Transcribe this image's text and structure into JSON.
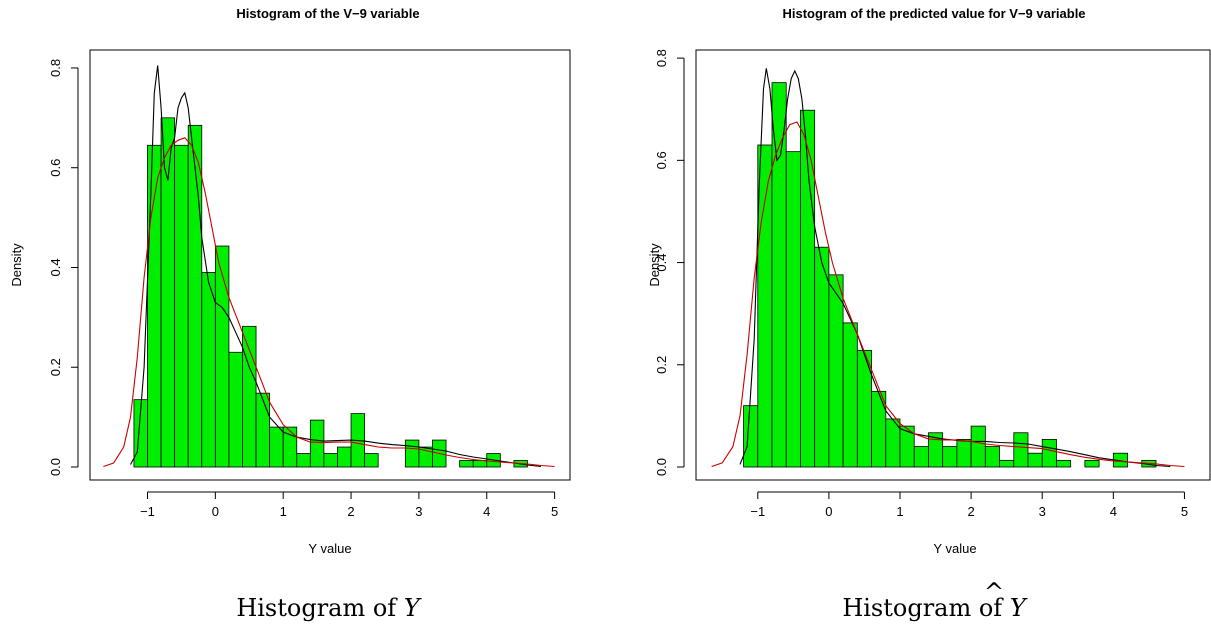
{
  "chart_data": [
    {
      "type": "bar",
      "title": "Histogram of the V−9 variable",
      "xlabel": "Y value",
      "ylabel": "Density",
      "xlim": [
        -1.7,
        5.05
      ],
      "ylim": [
        0,
        0.83
      ],
      "x_ticks": [
        -1,
        0,
        1,
        2,
        3,
        4,
        5
      ],
      "x_tick_labels": [
        "−1",
        "0",
        "1",
        "2",
        "3",
        "4",
        "5"
      ],
      "y_ticks": [
        0.0,
        0.2,
        0.4,
        0.6,
        0.8
      ],
      "y_tick_labels": [
        "0.0",
        "0.2",
        "0.4",
        "0.6",
        "0.8"
      ],
      "bin_edges": [
        -1.2,
        -1.0,
        -0.8,
        -0.6,
        -0.4,
        -0.2,
        0.0,
        0.2,
        0.4,
        0.6,
        0.8,
        1.0,
        1.2,
        1.4,
        1.6,
        1.8,
        2.0,
        2.2,
        2.4,
        2.6,
        2.8,
        3.0,
        3.2,
        3.4,
        3.6,
        3.8,
        4.0,
        4.2,
        4.4,
        4.6
      ],
      "values": [
        0.135,
        0.645,
        0.7,
        0.645,
        0.685,
        0.39,
        0.443,
        0.23,
        0.282,
        0.148,
        0.08,
        0.08,
        0.027,
        0.094,
        0.027,
        0.04,
        0.107,
        0.027,
        0.0,
        0.0,
        0.054,
        0.04,
        0.054,
        0.0,
        0.013,
        0.013,
        0.027,
        0.0,
        0.013
      ],
      "bar_color": "#00ee00",
      "series": [
        {
          "color": "#000000",
          "x": [
            -1.25,
            -1.15,
            -1.05,
            -0.95,
            -0.9,
            -0.85,
            -0.8,
            -0.75,
            -0.7,
            -0.65,
            -0.6,
            -0.55,
            -0.5,
            -0.45,
            -0.4,
            -0.35,
            -0.3,
            -0.25,
            -0.2,
            -0.1,
            0.0,
            0.1,
            0.2,
            0.3,
            0.4,
            0.5,
            0.6,
            0.8,
            1.0,
            1.2,
            1.4,
            1.6,
            1.8,
            2.0,
            2.2,
            2.4,
            2.6,
            2.8,
            3.0,
            3.2,
            3.4,
            3.6,
            3.8,
            4.0,
            4.2,
            4.4,
            4.6,
            4.8
          ],
          "y": [
            0.005,
            0.03,
            0.2,
            0.55,
            0.75,
            0.805,
            0.72,
            0.6,
            0.575,
            0.64,
            0.66,
            0.72,
            0.74,
            0.75,
            0.72,
            0.66,
            0.6,
            0.54,
            0.46,
            0.37,
            0.33,
            0.32,
            0.3,
            0.27,
            0.24,
            0.2,
            0.17,
            0.1,
            0.07,
            0.06,
            0.055,
            0.052,
            0.053,
            0.054,
            0.052,
            0.048,
            0.045,
            0.043,
            0.04,
            0.036,
            0.032,
            0.025,
            0.02,
            0.016,
            0.012,
            0.008,
            0.004,
            0.001
          ]
        },
        {
          "color": "#cc0000",
          "x": [
            -1.65,
            -1.5,
            -1.35,
            -1.25,
            -1.15,
            -1.05,
            -0.95,
            -0.85,
            -0.75,
            -0.65,
            -0.55,
            -0.45,
            -0.35,
            -0.25,
            -0.15,
            -0.05,
            0.05,
            0.2,
            0.4,
            0.6,
            0.8,
            1.0,
            1.2,
            1.4,
            1.6,
            1.8,
            2.0,
            2.2,
            2.4,
            2.6,
            2.8,
            3.0,
            3.2,
            3.4,
            3.6,
            3.8,
            4.0,
            4.2,
            4.4,
            4.6,
            4.8,
            5.0
          ],
          "y": [
            0.001,
            0.008,
            0.04,
            0.1,
            0.22,
            0.38,
            0.5,
            0.58,
            0.62,
            0.645,
            0.655,
            0.66,
            0.645,
            0.61,
            0.55,
            0.48,
            0.41,
            0.34,
            0.27,
            0.2,
            0.13,
            0.085,
            0.06,
            0.05,
            0.049,
            0.05,
            0.05,
            0.045,
            0.04,
            0.038,
            0.038,
            0.036,
            0.03,
            0.024,
            0.019,
            0.015,
            0.012,
            0.01,
            0.008,
            0.006,
            0.003,
            0.001
          ]
        }
      ],
      "caption": "Histogram of ",
      "caption_var": "Y"
    },
    {
      "type": "bar",
      "title": "Histogram of the predicted value for V−9 variable",
      "xlabel": "Y value",
      "ylabel": "Density",
      "xlim": [
        -1.7,
        5.05
      ],
      "ylim": [
        0,
        0.81
      ],
      "x_ticks": [
        -1,
        0,
        1,
        2,
        3,
        4,
        5
      ],
      "x_tick_labels": [
        "−1",
        "0",
        "1",
        "2",
        "3",
        "4",
        "5"
      ],
      "y_ticks": [
        0.0,
        0.2,
        0.4,
        0.6,
        0.8
      ],
      "y_tick_labels": [
        "0.0",
        "0.2",
        "0.4",
        "0.6",
        "0.8"
      ],
      "bin_edges": [
        -1.2,
        -1.0,
        -0.8,
        -0.6,
        -0.4,
        -0.2,
        0.0,
        0.2,
        0.4,
        0.6,
        0.8,
        1.0,
        1.2,
        1.4,
        1.6,
        1.8,
        2.0,
        2.2,
        2.4,
        2.6,
        2.8,
        3.0,
        3.2,
        3.4,
        3.6,
        3.8,
        4.0,
        4.2,
        4.4,
        4.6
      ],
      "values": [
        0.12,
        0.63,
        0.752,
        0.617,
        0.698,
        0.43,
        0.376,
        0.282,
        0.228,
        0.148,
        0.094,
        0.08,
        0.04,
        0.067,
        0.04,
        0.054,
        0.08,
        0.04,
        0.013,
        0.067,
        0.027,
        0.054,
        0.013,
        0.0,
        0.013,
        0.0,
        0.027,
        0.0,
        0.013
      ],
      "bar_color": "#00ee00",
      "series": [
        {
          "color": "#000000",
          "x": [
            -1.25,
            -1.15,
            -1.05,
            -0.98,
            -0.92,
            -0.88,
            -0.83,
            -0.78,
            -0.73,
            -0.68,
            -0.63,
            -0.58,
            -0.53,
            -0.48,
            -0.43,
            -0.38,
            -0.33,
            -0.28,
            -0.2,
            -0.1,
            0.0,
            0.1,
            0.2,
            0.3,
            0.4,
            0.5,
            0.6,
            0.8,
            1.0,
            1.2,
            1.4,
            1.6,
            1.8,
            2.0,
            2.2,
            2.4,
            2.6,
            2.8,
            3.0,
            3.2,
            3.4,
            3.6,
            3.8,
            4.0,
            4.2,
            4.4,
            4.6,
            4.8
          ],
          "y": [
            0.005,
            0.04,
            0.25,
            0.55,
            0.74,
            0.78,
            0.74,
            0.66,
            0.6,
            0.61,
            0.66,
            0.72,
            0.76,
            0.775,
            0.76,
            0.72,
            0.65,
            0.56,
            0.47,
            0.4,
            0.36,
            0.34,
            0.32,
            0.29,
            0.26,
            0.22,
            0.18,
            0.11,
            0.075,
            0.065,
            0.06,
            0.055,
            0.052,
            0.05,
            0.05,
            0.048,
            0.047,
            0.045,
            0.04,
            0.035,
            0.03,
            0.024,
            0.018,
            0.014,
            0.01,
            0.007,
            0.003,
            0.001
          ]
        },
        {
          "color": "#cc0000",
          "x": [
            -1.65,
            -1.5,
            -1.35,
            -1.25,
            -1.15,
            -1.05,
            -0.95,
            -0.85,
            -0.75,
            -0.65,
            -0.55,
            -0.45,
            -0.35,
            -0.25,
            -0.15,
            -0.05,
            0.05,
            0.2,
            0.4,
            0.6,
            0.8,
            1.0,
            1.2,
            1.4,
            1.6,
            1.8,
            2.0,
            2.2,
            2.4,
            2.6,
            2.8,
            3.0,
            3.2,
            3.4,
            3.6,
            3.8,
            4.0,
            4.2,
            4.4,
            4.6,
            4.8,
            5.0
          ],
          "y": [
            0.001,
            0.008,
            0.04,
            0.1,
            0.22,
            0.37,
            0.48,
            0.56,
            0.61,
            0.645,
            0.67,
            0.675,
            0.65,
            0.6,
            0.53,
            0.46,
            0.4,
            0.33,
            0.26,
            0.19,
            0.12,
            0.085,
            0.065,
            0.055,
            0.053,
            0.053,
            0.05,
            0.045,
            0.042,
            0.04,
            0.038,
            0.036,
            0.03,
            0.024,
            0.019,
            0.015,
            0.012,
            0.01,
            0.008,
            0.006,
            0.003,
            0.001
          ]
        }
      ],
      "caption": "Histogram of ",
      "caption_var": "Y",
      "caption_var_hat": "^"
    }
  ]
}
